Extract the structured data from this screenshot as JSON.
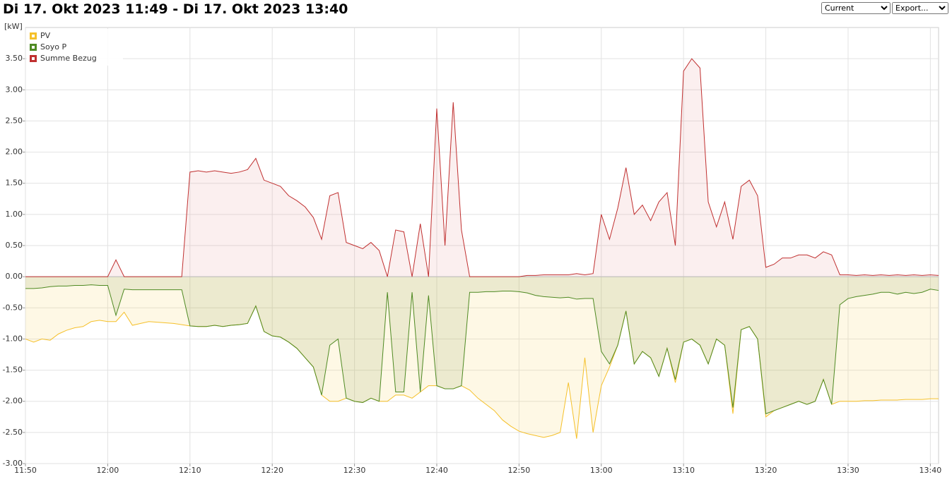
{
  "chart_data": {
    "type": "line",
    "title": "Di 17. Okt 2023 11:49 - Di 17. Okt 2023 13:40",
    "y_label": "[kW]",
    "x": [
      "11:50",
      "11:51",
      "11:52",
      "11:53",
      "11:54",
      "11:55",
      "11:56",
      "11:57",
      "11:58",
      "11:59",
      "12:00",
      "12:01",
      "12:02",
      "12:03",
      "12:04",
      "12:05",
      "12:06",
      "12:07",
      "12:08",
      "12:09",
      "12:10",
      "12:11",
      "12:12",
      "12:13",
      "12:14",
      "12:15",
      "12:16",
      "12:17",
      "12:18",
      "12:19",
      "12:20",
      "12:21",
      "12:22",
      "12:23",
      "12:24",
      "12:25",
      "12:26",
      "12:27",
      "12:28",
      "12:29",
      "12:30",
      "12:31",
      "12:32",
      "12:33",
      "12:34",
      "12:35",
      "12:36",
      "12:37",
      "12:38",
      "12:39",
      "12:40",
      "12:41",
      "12:42",
      "12:43",
      "12:44",
      "12:45",
      "12:46",
      "12:47",
      "12:48",
      "12:49",
      "12:50",
      "12:51",
      "12:52",
      "12:53",
      "12:54",
      "12:55",
      "12:56",
      "12:57",
      "12:58",
      "12:59",
      "13:00",
      "13:01",
      "13:02",
      "13:03",
      "13:04",
      "13:05",
      "13:06",
      "13:07",
      "13:08",
      "13:09",
      "13:10",
      "13:11",
      "13:12",
      "13:13",
      "13:14",
      "13:15",
      "13:16",
      "13:17",
      "13:18",
      "13:19",
      "13:20",
      "13:21",
      "13:22",
      "13:23",
      "13:24",
      "13:25",
      "13:26",
      "13:27",
      "13:28",
      "13:29",
      "13:30",
      "13:31",
      "13:32",
      "13:33",
      "13:34",
      "13:35",
      "13:36",
      "13:37",
      "13:38",
      "13:39",
      "13:40",
      "13:41"
    ],
    "series": [
      {
        "name": "PV",
        "color": "#f5c02a",
        "fill": "rgba(250,215,110,0.18)",
        "values": [
          -1.0,
          -1.05,
          -1.0,
          -1.02,
          -0.92,
          -0.86,
          -0.82,
          -0.8,
          -0.72,
          -0.7,
          -0.72,
          -0.72,
          -0.57,
          -0.78,
          -0.75,
          -0.72,
          -0.73,
          -0.74,
          -0.75,
          -0.77,
          -0.79,
          -0.8,
          -0.8,
          -0.78,
          -0.8,
          -0.78,
          -0.77,
          -0.75,
          -0.47,
          -0.88,
          -0.95,
          -0.97,
          -1.05,
          -1.15,
          -1.3,
          -1.45,
          -1.9,
          -2.0,
          -2.0,
          -1.95,
          -2.0,
          -2.02,
          -1.95,
          -2.0,
          -2.0,
          -1.9,
          -1.9,
          -1.95,
          -1.85,
          -1.75,
          -1.75,
          -1.8,
          -1.8,
          -1.75,
          -1.82,
          -1.95,
          -2.05,
          -2.15,
          -2.3,
          -2.4,
          -2.48,
          -2.52,
          -2.55,
          -2.58,
          -2.55,
          -2.5,
          -1.7,
          -2.6,
          -1.3,
          -2.5,
          -1.75,
          -1.45,
          -1.1,
          -0.55,
          -1.4,
          -1.2,
          -1.3,
          -1.6,
          -1.15,
          -1.7,
          -1.05,
          -1.0,
          -1.1,
          -1.4,
          -1.0,
          -1.1,
          -2.2,
          -0.85,
          -0.8,
          -1.0,
          -2.25,
          -2.15,
          -2.1,
          -2.05,
          -2.0,
          -2.05,
          -2.0,
          -1.65,
          -2.05,
          -2.0,
          -2.0,
          -2.0,
          -1.99,
          -1.99,
          -1.98,
          -1.98,
          -1.98,
          -1.97,
          -1.97,
          -1.97,
          -1.96,
          -1.96
        ]
      },
      {
        "name": "Soyo P",
        "color": "#4f8a23",
        "fill": "rgba(110,140,50,0.12)",
        "values": [
          -0.19,
          -0.19,
          -0.18,
          -0.16,
          -0.15,
          -0.15,
          -0.14,
          -0.14,
          -0.13,
          -0.14,
          -0.14,
          -0.62,
          -0.2,
          -0.21,
          -0.21,
          -0.21,
          -0.21,
          -0.21,
          -0.21,
          -0.21,
          -0.79,
          -0.8,
          -0.8,
          -0.78,
          -0.8,
          -0.78,
          -0.77,
          -0.75,
          -0.47,
          -0.88,
          -0.95,
          -0.97,
          -1.05,
          -1.15,
          -1.3,
          -1.45,
          -1.9,
          -1.1,
          -1.0,
          -1.95,
          -2.0,
          -2.02,
          -1.95,
          -2.0,
          -0.25,
          -1.85,
          -1.85,
          -0.25,
          -1.85,
          -0.3,
          -1.75,
          -1.8,
          -1.8,
          -1.75,
          -0.25,
          -0.25,
          -0.24,
          -0.24,
          -0.23,
          -0.23,
          -0.24,
          -0.26,
          -0.3,
          -0.32,
          -0.33,
          -0.34,
          -0.33,
          -0.36,
          -0.35,
          -0.35,
          -1.2,
          -1.4,
          -1.1,
          -0.55,
          -1.4,
          -1.2,
          -1.3,
          -1.6,
          -1.15,
          -1.65,
          -1.05,
          -1.0,
          -1.1,
          -1.4,
          -1.0,
          -1.1,
          -2.1,
          -0.85,
          -0.8,
          -1.0,
          -2.2,
          -2.15,
          -2.1,
          -2.05,
          -2.0,
          -2.05,
          -2.0,
          -1.65,
          -2.05,
          -0.45,
          -0.35,
          -0.32,
          -0.3,
          -0.28,
          -0.25,
          -0.25,
          -0.28,
          -0.25,
          -0.27,
          -0.25,
          -0.2,
          -0.22
        ]
      },
      {
        "name": "Summe Bezug",
        "color": "#c03030",
        "fill": "rgba(230,150,150,0.15)",
        "values": [
          0,
          0,
          0,
          0,
          0,
          0,
          0,
          0,
          0,
          0,
          0,
          0.27,
          0,
          0,
          0,
          0,
          0,
          0,
          0,
          0,
          1.68,
          1.7,
          1.68,
          1.7,
          1.68,
          1.66,
          1.68,
          1.72,
          1.9,
          1.55,
          1.5,
          1.45,
          1.3,
          1.22,
          1.12,
          0.95,
          0.6,
          1.3,
          1.35,
          0.55,
          0.5,
          0.45,
          0.55,
          0.42,
          0,
          0.75,
          0.72,
          0,
          0.85,
          0,
          2.7,
          0.5,
          2.8,
          0.75,
          0,
          0,
          0,
          0,
          0,
          0,
          0,
          0.02,
          0.02,
          0.03,
          0.03,
          0.03,
          0.03,
          0.05,
          0.03,
          0.05,
          1.0,
          0.6,
          1.1,
          1.75,
          1.0,
          1.15,
          0.9,
          1.2,
          1.35,
          0.5,
          3.3,
          3.5,
          3.35,
          1.2,
          0.8,
          1.2,
          0.6,
          1.45,
          1.55,
          1.3,
          0.15,
          0.2,
          0.3,
          0.3,
          0.35,
          0.35,
          0.3,
          0.4,
          0.35,
          0.03,
          0.03,
          0.02,
          0.03,
          0.02,
          0.03,
          0.02,
          0.03,
          0.02,
          0.03,
          0.02,
          0.03,
          0.02
        ]
      }
    ],
    "xlim": [
      "11:50",
      "13:41"
    ],
    "xticks": [
      "11:50",
      "12:00",
      "12:10",
      "12:20",
      "12:30",
      "12:40",
      "12:50",
      "13:00",
      "13:10",
      "13:20",
      "13:30",
      "13:40"
    ],
    "ylim": [
      -3,
      4
    ],
    "yticks": [
      {
        "value": -3,
        "label": "-3.00"
      },
      {
        "value": -2.5,
        "label": "-2.50"
      },
      {
        "value": -2,
        "label": "-2.00"
      },
      {
        "value": -1.5,
        "label": "-1.50"
      },
      {
        "value": -1,
        "label": "-1.00"
      },
      {
        "value": -0.5,
        "label": "-0.50"
      },
      {
        "value": 0,
        "label": "0.00"
      },
      {
        "value": 0.5,
        "label": "0.50"
      },
      {
        "value": 1,
        "label": "1.00"
      },
      {
        "value": 1.5,
        "label": "1.50"
      },
      {
        "value": 2,
        "label": "2.00"
      },
      {
        "value": 2.5,
        "label": "2.50"
      },
      {
        "value": 3,
        "label": "3.00"
      },
      {
        "value": 3.5,
        "label": "3.50"
      }
    ],
    "grid": true,
    "legend": "top-left"
  },
  "controls": {
    "period": "Current",
    "export": "Export..."
  }
}
